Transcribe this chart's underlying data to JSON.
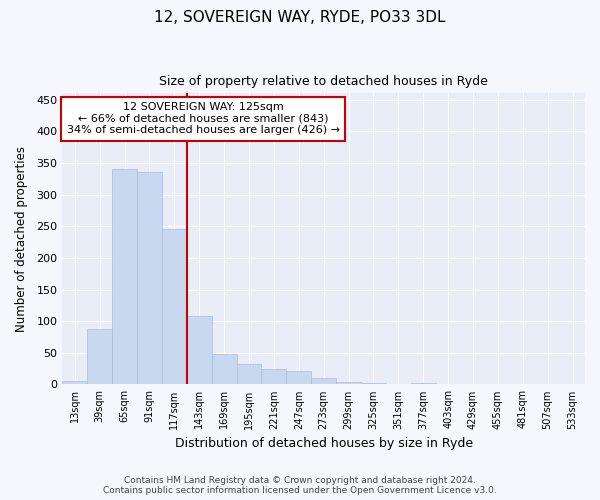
{
  "title1": "12, SOVEREIGN WAY, RYDE, PO33 3DL",
  "title2": "Size of property relative to detached houses in Ryde",
  "xlabel": "Distribution of detached houses by size in Ryde",
  "ylabel": "Number of detached properties",
  "footnote1": "Contains HM Land Registry data © Crown copyright and database right 2024.",
  "footnote2": "Contains public sector information licensed under the Open Government Licence v3.0.",
  "categories": [
    "13sqm",
    "39sqm",
    "65sqm",
    "91sqm",
    "117sqm",
    "143sqm",
    "169sqm",
    "195sqm",
    "221sqm",
    "247sqm",
    "273sqm",
    "299sqm",
    "325sqm",
    "351sqm",
    "377sqm",
    "403sqm",
    "429sqm",
    "455sqm",
    "481sqm",
    "507sqm",
    "533sqm"
  ],
  "values": [
    5,
    88,
    340,
    335,
    245,
    108,
    48,
    32,
    25,
    21,
    10,
    4,
    3,
    1,
    3,
    1,
    0,
    1,
    0,
    1,
    0
  ],
  "bar_color": "#c8d8ee",
  "bar_edge_color": "#aabbdd",
  "vline_x_index": 4,
  "vline_color": "#cc0000",
  "annotation_line1": "12 SOVEREIGN WAY: 125sqm",
  "annotation_line2": "← 66% of detached houses are smaller (843)",
  "annotation_line3": "34% of semi-detached houses are larger (426) →",
  "annotation_color": "#cc0000",
  "bg_color": "#f5f7fc",
  "plot_bg_color": "#e8edf7",
  "grid_color": "#ffffff",
  "ylim": [
    0,
    460
  ],
  "yticks": [
    0,
    50,
    100,
    150,
    200,
    250,
    300,
    350,
    400,
    450
  ]
}
